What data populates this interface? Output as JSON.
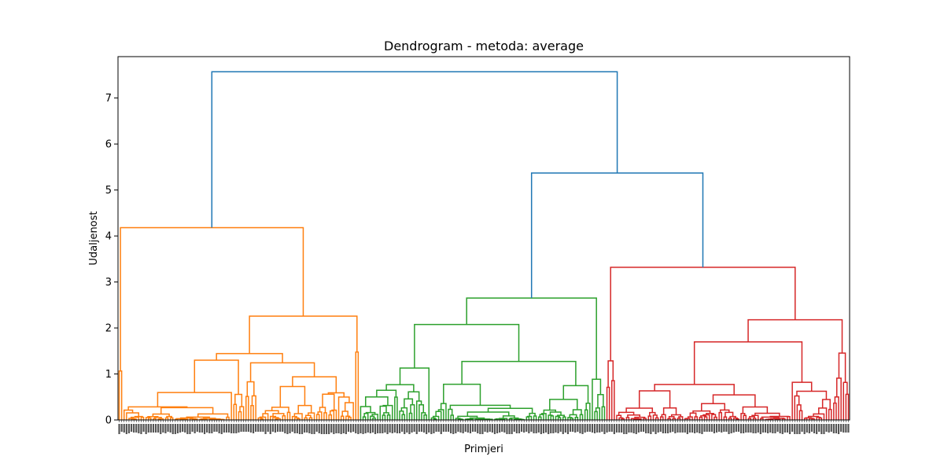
{
  "chart_data": {
    "type": "dendrogram",
    "title": "Dendrogram - metoda: average",
    "xlabel": "Primjeri",
    "ylabel": "Udaljenost",
    "ylim": [
      0,
      7.9
    ],
    "yticks": [
      0,
      1,
      2,
      3,
      4,
      5,
      6,
      7
    ],
    "leaf_count": 300,
    "colors": {
      "above_threshold": "#1f77b4",
      "cluster_1": "#ff7f0e",
      "cluster_2": "#2ca02c",
      "cluster_3": "#d62728"
    },
    "top_merges": [
      {
        "name": "root",
        "height": 7.57,
        "color": "above_threshold"
      },
      {
        "name": "green-red",
        "height": 5.37,
        "color": "above_threshold"
      },
      {
        "name": "red-cluster",
        "height": 3.32,
        "color": "cluster_3"
      },
      {
        "name": "orange-cluster",
        "height": 4.18,
        "color": "cluster_1"
      },
      {
        "name": "green-cluster",
        "height": 2.65,
        "color": "cluster_2"
      }
    ]
  }
}
